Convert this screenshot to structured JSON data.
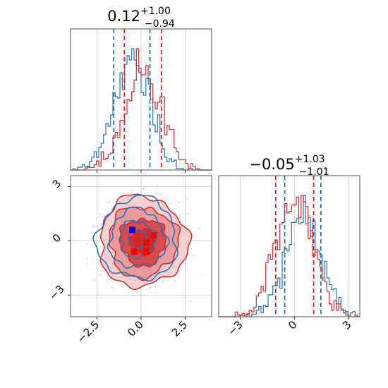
{
  "chart_data": [
    {
      "type": "histogram",
      "panel": "top-left",
      "title": {
        "value": "0.12",
        "plus": "+1.00",
        "minus": "−0.94"
      },
      "xlim": [
        -4.0,
        4.0
      ],
      "grid": true,
      "series": [
        {
          "color": "#1f77b4",
          "quantiles": [
            -1.55,
            0.5
          ]
        },
        {
          "color": "#d62728",
          "quantiles": [
            -0.95,
            1.15
          ]
        }
      ]
    },
    {
      "type": "contour",
      "panel": "bottom-left",
      "xlim": [
        -4.0,
        4.0
      ],
      "ylim": [
        -4.2,
        3.6
      ],
      "x_ticks": [
        "−2.5",
        "0.0",
        "2.5"
      ],
      "x_tick_values": [
        -2.5,
        0.0,
        2.5
      ],
      "y_ticks": [
        "3",
        "0",
        "−3"
      ],
      "y_tick_values": [
        3,
        0,
        -3
      ],
      "grid": true,
      "markers": [
        {
          "color": "#0000ff",
          "x": -0.5,
          "y": 0.6
        },
        {
          "color": "#ff0000",
          "x": 0.7,
          "y": 0.3
        },
        {
          "color": "#ff0000",
          "x": 0.3,
          "y": -0.1
        },
        {
          "color": "#ff0000",
          "x": -0.4,
          "y": -0.6
        },
        {
          "color": "#ff0000",
          "x": 0.3,
          "y": -0.6
        }
      ],
      "series": [
        {
          "color": "#1f77b4",
          "filled": false
        },
        {
          "color": "#d62728",
          "filled": true
        }
      ]
    },
    {
      "type": "histogram",
      "panel": "bottom-right",
      "title": {
        "value": "−0.05",
        "plus": "+1.03",
        "minus": "−1.01"
      },
      "xlim": [
        -4.2,
        3.6
      ],
      "x_ticks": [
        "−3",
        "0",
        "3"
      ],
      "x_tick_values": [
        -3,
        0,
        3
      ],
      "grid": true,
      "series": [
        {
          "color": "#1f77b4",
          "quantiles": [
            -0.55,
            1.45
          ]
        },
        {
          "color": "#d62728",
          "quantiles": [
            -1.05,
            1.05
          ]
        }
      ]
    }
  ]
}
